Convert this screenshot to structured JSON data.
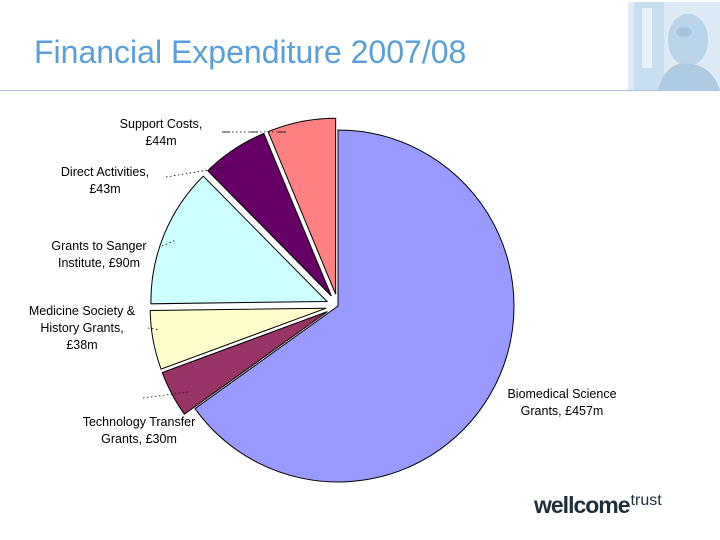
{
  "slide": {
    "title": "Financial Expenditure 2007/08"
  },
  "logo": {
    "main": "wellcome",
    "sub": "trust"
  },
  "colors": {
    "title": "#5a9fd8",
    "rule": "#a9c7e4"
  },
  "chart_data": {
    "type": "pie",
    "unit": "£m",
    "title": "",
    "start_angle_deg": 0,
    "direction": "clockwise",
    "slices": [
      {
        "label_lines": [
          "Biomedical Science",
          "Grants, £457m"
        ],
        "value": 457,
        "color": "#9999ff",
        "exploded": false
      },
      {
        "label_lines": [
          "Technology Transfer",
          "Grants, £30m"
        ],
        "value": 30,
        "color": "#993366",
        "exploded": true
      },
      {
        "label_lines": [
          "Medicine Society &",
          "History Grants,",
          "£38m"
        ],
        "value": 38,
        "color": "#ffffcc",
        "exploded": true
      },
      {
        "label_lines": [
          "Grants to Sanger",
          "Institute, £90m"
        ],
        "value": 90,
        "color": "#ccffff",
        "exploded": true
      },
      {
        "label_lines": [
          "Direct Activities,",
          "£43m"
        ],
        "value": 43,
        "color": "#660066",
        "exploded": true
      },
      {
        "label_lines": [
          "Support Costs,",
          "£44m"
        ],
        "value": 44,
        "color": "#ff8080",
        "exploded": true
      }
    ]
  }
}
